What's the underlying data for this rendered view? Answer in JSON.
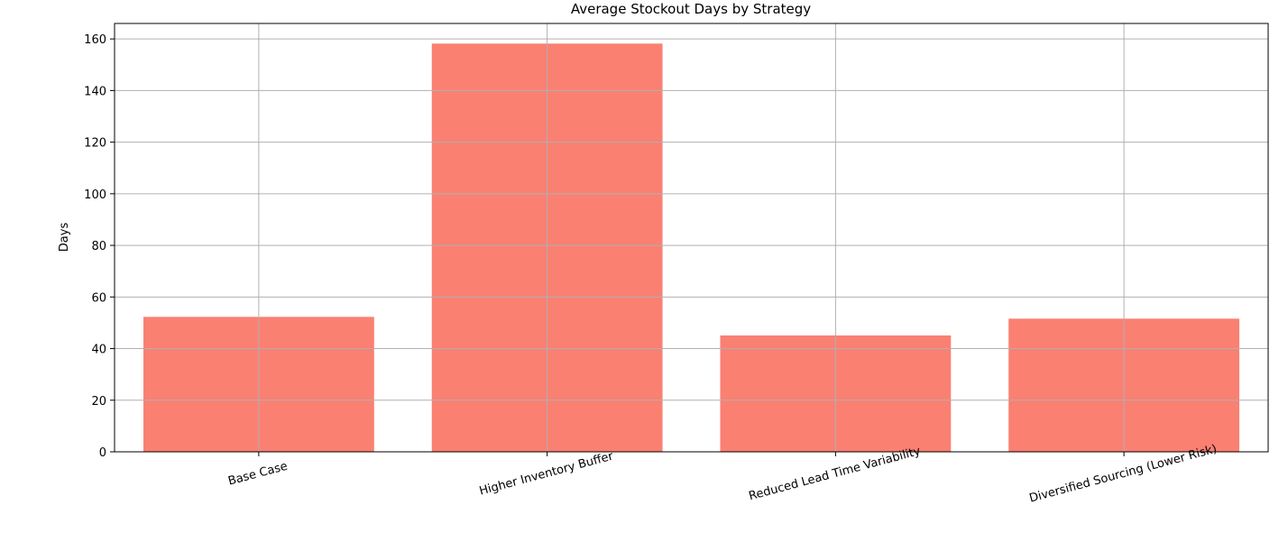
{
  "chart_data": {
    "type": "bar",
    "title": "Average Stockout Days by Strategy",
    "xlabel": "",
    "ylabel": "Days",
    "categories": [
      "Base Case",
      "Higher Inventory Buffer",
      "Reduced Lead Time Variability",
      "Diversified Sourcing (Lower Risk)"
    ],
    "values": [
      52.3,
      158.2,
      45.1,
      51.6
    ],
    "ylim": [
      0,
      166
    ],
    "yticks": [
      0,
      20,
      40,
      60,
      80,
      100,
      120,
      140,
      160
    ],
    "grid": true,
    "bar_color": "#fa8072"
  }
}
